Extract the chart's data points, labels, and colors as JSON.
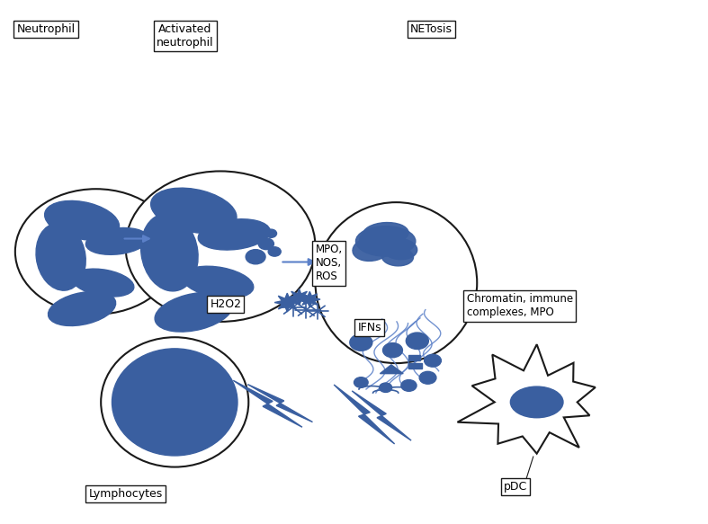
{
  "bg_color": "#ffffff",
  "blue": "#3a5fa0",
  "light_blue": "#5b80c8",
  "outline_color": "#1a1a1a",
  "arrow_color": "#5b80c8",
  "label_neutrophil": "Neutrophil",
  "label_activated": "Activated\nneutrophil",
  "label_netosis": "NETosis",
  "label_mpo": "MPO,\nNOS,\nROS",
  "label_h2o2": "H2O2",
  "label_chromatin": "Chromatin, immune\ncomplexes, MPO",
  "label_ifns": "IFNs",
  "label_lymphocytes": "Lymphocytes",
  "label_pdc": "pDC",
  "fig_width": 7.87,
  "fig_height": 5.83,
  "dpi": 100
}
